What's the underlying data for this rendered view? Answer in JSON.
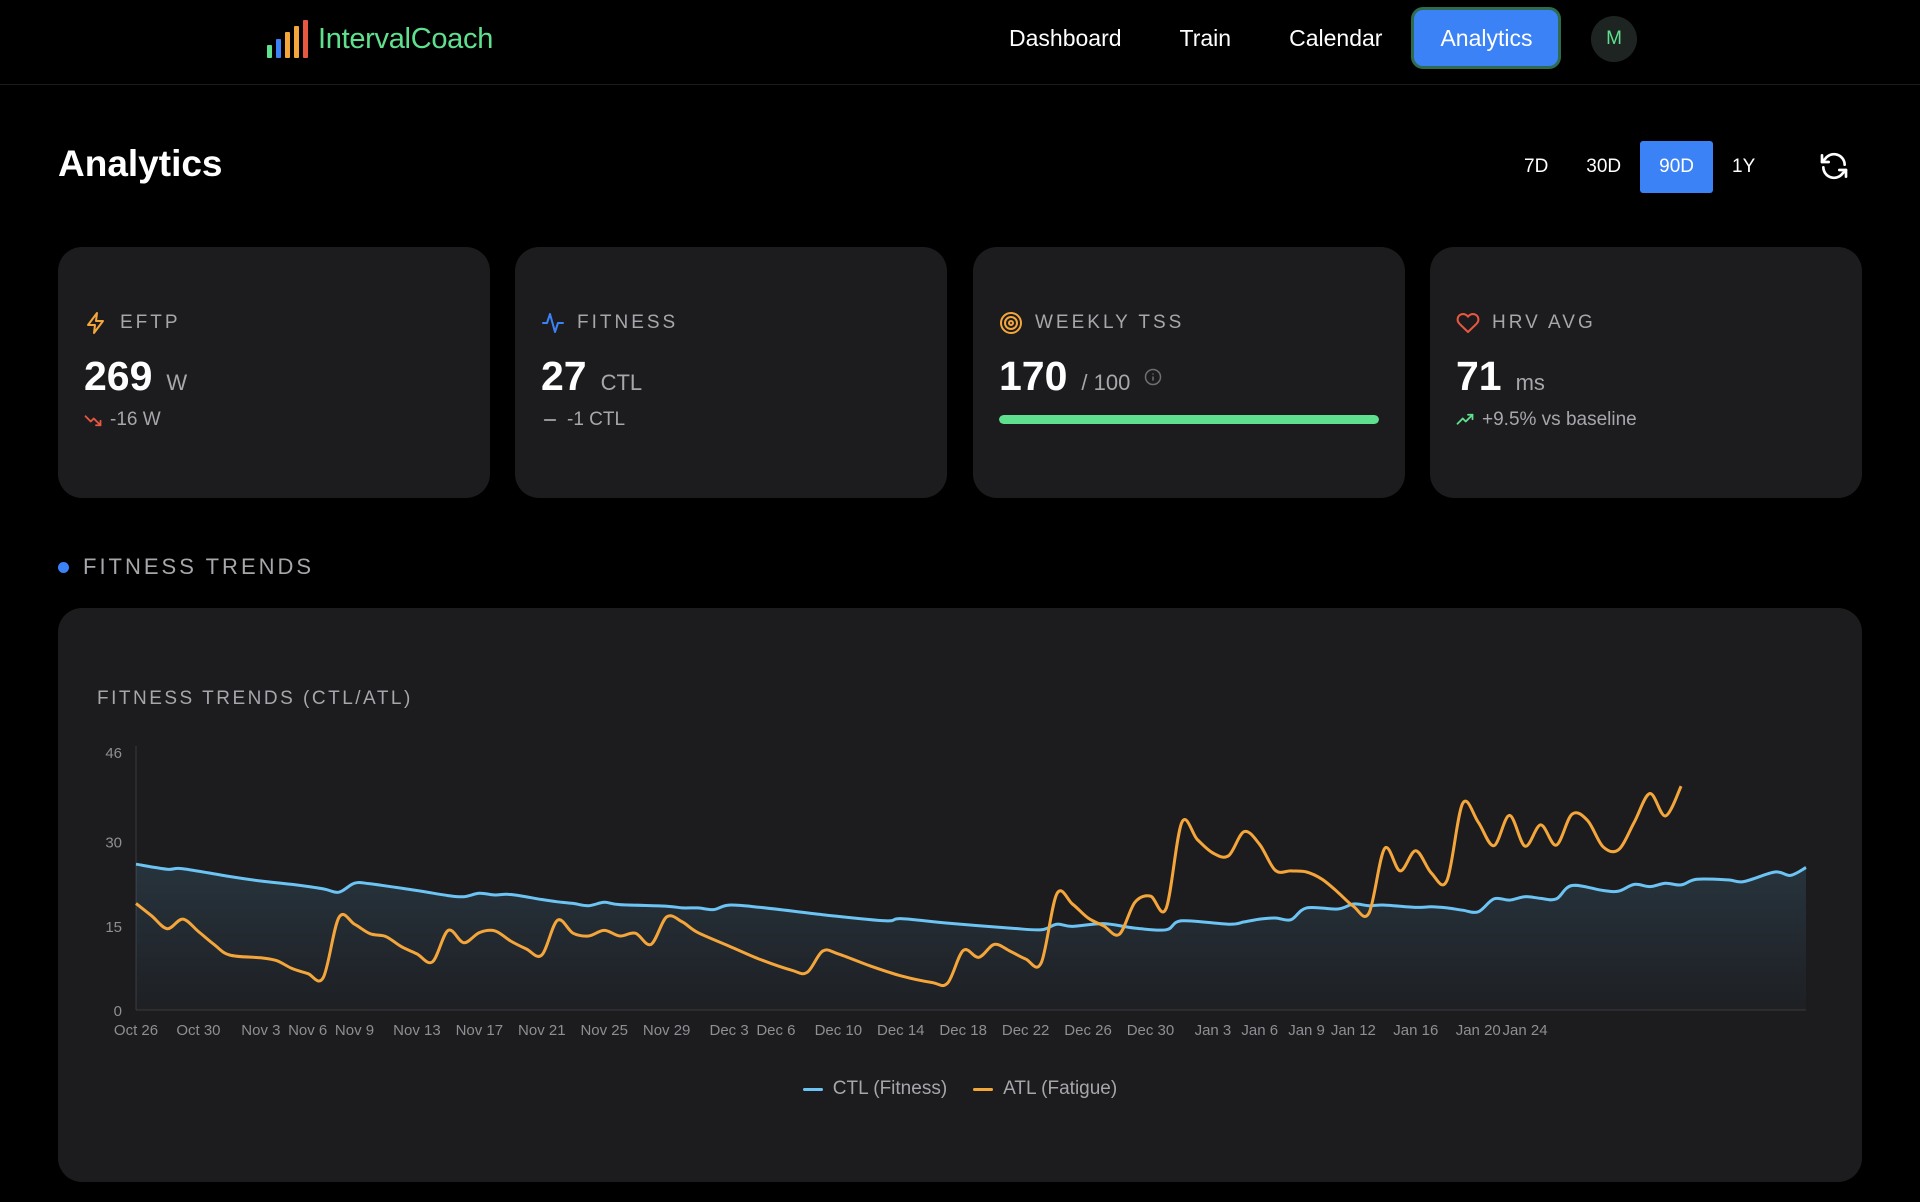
{
  "app": {
    "brand": "IntervalCoach",
    "nav": [
      "Dashboard",
      "Train",
      "Calendar",
      "Analytics"
    ],
    "active_nav": "Analytics",
    "avatar_initial": "M",
    "colors": {
      "brand": "#5fe08f",
      "accent": "#3b82f6",
      "ctl": "#6cc4f5",
      "atl": "#f5a63b",
      "card_bg": "#1c1c1f"
    }
  },
  "page": {
    "title": "Analytics",
    "ranges": [
      "7D",
      "30D",
      "90D",
      "1Y"
    ],
    "active_range": "90D",
    "refresh_icon": "refresh-icon"
  },
  "cards": {
    "eftp": {
      "label": "EFTP",
      "icon": "lightning-icon",
      "value": "269",
      "unit": "W",
      "delta": "-16 W",
      "delta_icon": "trend-down-icon"
    },
    "fitness": {
      "label": "FITNESS",
      "icon": "activity-icon",
      "value": "27",
      "unit": "CTL",
      "delta": "-1 CTL",
      "delta_icon": "minus-icon"
    },
    "weekly_tss": {
      "label": "WEEKLY TSS",
      "icon": "target-icon",
      "value": "170",
      "unit": "/ 100",
      "info_icon": "info-icon",
      "progress": 1.0
    },
    "hrv": {
      "label": "HRV AVG",
      "icon": "heart-icon",
      "value": "71",
      "unit": "ms",
      "delta": "+9.5% vs baseline",
      "delta_icon": "trend-up-icon"
    }
  },
  "section": {
    "title": "FITNESS TRENDS"
  },
  "chart_data": {
    "type": "line",
    "title": "FITNESS TRENDS (CTL/ATL)",
    "xlabel": "",
    "ylabel": "",
    "ylim": [
      0,
      46
    ],
    "yticks": [
      0,
      15,
      30,
      46
    ],
    "xticks": [
      "Oct 26",
      "Oct 30",
      "Nov 3",
      "Nov 6",
      "Nov 9",
      "Nov 13",
      "Nov 17",
      "Nov 21",
      "Nov 25",
      "Nov 29",
      "Dec 3",
      "Dec 6",
      "Dec 10",
      "Dec 14",
      "Dec 18",
      "Dec 22",
      "Dec 26",
      "Dec 30",
      "Jan 3",
      "Jan 6",
      "Jan 9",
      "Jan 12",
      "Jan 16",
      "Jan 20",
      "Jan 24"
    ],
    "xtick_days": [
      0,
      4,
      8,
      11,
      14,
      18,
      22,
      26,
      30,
      34,
      38,
      41,
      45,
      49,
      53,
      57,
      61,
      65,
      69,
      72,
      75,
      78,
      82,
      86,
      89
    ],
    "grid": false,
    "legend_position": "bottom",
    "series": [
      {
        "name": "CTL (Fitness)",
        "color": "#6cc4f5",
        "points": [
          [
            0,
            26
          ],
          [
            2,
            25.1
          ],
          [
            3,
            25.2
          ],
          [
            6,
            23.8
          ],
          [
            8,
            23
          ],
          [
            10,
            22.4
          ],
          [
            12,
            21.6
          ],
          [
            13,
            21
          ],
          [
            14,
            22.6
          ],
          [
            15,
            22.5
          ],
          [
            18,
            21.3
          ],
          [
            20,
            20.4
          ],
          [
            21,
            20.2
          ],
          [
            22,
            20.8
          ],
          [
            23,
            20.5
          ],
          [
            24,
            20.6
          ],
          [
            26,
            19.7
          ],
          [
            27,
            19.3
          ],
          [
            28,
            19
          ],
          [
            29,
            18.6
          ],
          [
            30,
            19.2
          ],
          [
            31,
            18.8
          ],
          [
            34,
            18.5
          ],
          [
            35,
            18.2
          ],
          [
            36,
            18.2
          ],
          [
            37,
            17.9
          ],
          [
            38,
            18.7
          ],
          [
            40,
            18.3
          ],
          [
            44,
            17
          ],
          [
            48,
            15.9
          ],
          [
            49,
            16.3
          ],
          [
            52,
            15.5
          ],
          [
            56,
            14.6
          ],
          [
            58,
            14.3
          ],
          [
            59,
            15.3
          ],
          [
            60,
            14.9
          ],
          [
            62,
            15.4
          ],
          [
            64,
            14.6
          ],
          [
            66,
            14.3
          ],
          [
            67,
            15.9
          ],
          [
            70,
            15.3
          ],
          [
            71,
            15.7
          ],
          [
            72,
            16.2
          ],
          [
            73,
            16.4
          ],
          [
            74,
            16.1
          ],
          [
            75,
            18.2
          ],
          [
            77,
            18
          ],
          [
            78,
            18.9
          ],
          [
            79,
            18.6
          ],
          [
            80,
            18.7
          ],
          [
            82,
            18.3
          ],
          [
            83,
            18.4
          ],
          [
            84,
            18.2
          ],
          [
            85,
            17.8
          ],
          [
            86,
            17.5
          ],
          [
            87,
            19.8
          ],
          [
            88,
            19.6
          ],
          [
            89,
            20.2
          ],
          [
            90,
            19.9
          ],
          [
            91,
            19.8
          ],
          [
            92,
            22.2
          ],
          [
            94,
            21.3
          ],
          [
            95,
            21.2
          ],
          [
            96,
            22.4
          ],
          [
            97,
            22
          ],
          [
            98,
            22.6
          ],
          [
            99,
            22.3
          ],
          [
            100,
            23.3
          ],
          [
            102,
            23.2
          ],
          [
            103,
            22.9
          ],
          [
            105,
            24.6
          ],
          [
            106,
            24
          ],
          [
            107,
            25.4
          ]
        ]
      },
      {
        "name": "ATL (Fatigue)",
        "color": "#f5a63b",
        "points": [
          [
            0,
            19
          ],
          [
            1,
            16.8
          ],
          [
            2,
            14.5
          ],
          [
            3,
            16.2
          ],
          [
            4,
            14
          ],
          [
            5,
            11.7
          ],
          [
            6,
            9.8
          ],
          [
            8,
            9.3
          ],
          [
            9,
            8.8
          ],
          [
            10,
            7.4
          ],
          [
            11,
            6.5
          ],
          [
            12,
            5.8
          ],
          [
            13,
            16.5
          ],
          [
            14,
            15.3
          ],
          [
            15,
            13.6
          ],
          [
            16,
            13.1
          ],
          [
            17,
            11.3
          ],
          [
            18,
            10
          ],
          [
            19,
            8.6
          ],
          [
            20,
            14.2
          ],
          [
            21,
            12
          ],
          [
            22,
            13.8
          ],
          [
            23,
            14.1
          ],
          [
            24,
            12.3
          ],
          [
            25,
            10.9
          ],
          [
            26,
            9.8
          ],
          [
            27,
            16
          ],
          [
            28,
            13.7
          ],
          [
            29,
            13.2
          ],
          [
            30,
            14.2
          ],
          [
            31,
            13.2
          ],
          [
            32,
            13.7
          ],
          [
            33,
            11.7
          ],
          [
            34,
            16.6
          ],
          [
            35,
            15.7
          ],
          [
            36,
            13.8
          ],
          [
            38,
            11.4
          ],
          [
            40,
            9
          ],
          [
            42,
            7.1
          ],
          [
            43,
            6.7
          ],
          [
            44,
            10.5
          ],
          [
            45,
            10
          ],
          [
            47,
            7.9
          ],
          [
            49,
            6.1
          ],
          [
            51,
            4.9
          ],
          [
            52,
            4.8
          ],
          [
            53,
            10.6
          ],
          [
            54,
            9.4
          ],
          [
            55,
            11.7
          ],
          [
            56,
            10.5
          ],
          [
            57,
            9.1
          ],
          [
            58,
            8.4
          ],
          [
            59,
            20.7
          ],
          [
            60,
            18.9
          ],
          [
            61,
            16.4
          ],
          [
            62,
            15
          ],
          [
            63,
            13.5
          ],
          [
            64,
            19.2
          ],
          [
            65,
            20.3
          ],
          [
            66,
            18.1
          ],
          [
            67,
            33.4
          ],
          [
            68,
            30.4
          ],
          [
            69,
            28
          ],
          [
            70,
            27.5
          ],
          [
            71,
            31.8
          ],
          [
            72,
            29.5
          ],
          [
            73,
            24.9
          ],
          [
            74,
            24.8
          ],
          [
            75,
            24.6
          ],
          [
            76,
            23.3
          ],
          [
            77,
            21
          ],
          [
            78,
            18.5
          ],
          [
            79,
            17.3
          ],
          [
            80,
            28.8
          ],
          [
            81,
            24.8
          ],
          [
            82,
            28.4
          ],
          [
            83,
            24.4
          ],
          [
            84,
            23.1
          ],
          [
            85,
            36.8
          ],
          [
            86,
            33.5
          ],
          [
            87,
            29.3
          ],
          [
            88,
            34.7
          ],
          [
            89,
            29.2
          ],
          [
            90,
            33
          ],
          [
            91,
            29.4
          ],
          [
            92,
            34.9
          ],
          [
            93,
            33.8
          ],
          [
            94,
            29.1
          ],
          [
            95,
            28.6
          ],
          [
            96,
            33.5
          ],
          [
            97,
            38.6
          ],
          [
            98,
            34.6
          ],
          [
            99,
            39.9
          ]
        ]
      }
    ],
    "legend": [
      "CTL (Fitness)",
      "ATL (Fatigue)"
    ]
  }
}
